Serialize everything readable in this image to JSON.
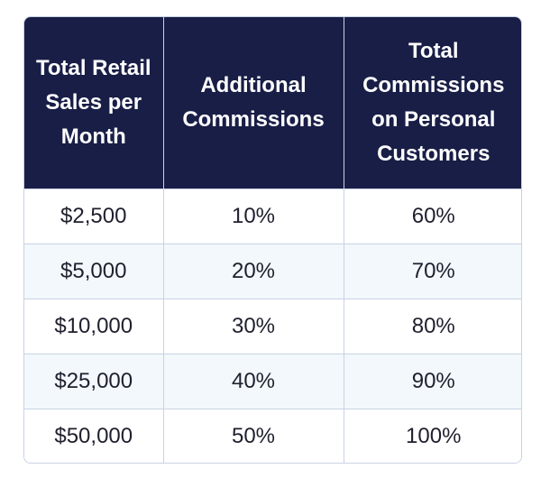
{
  "table": {
    "headers": [
      "Total Retail Sales per Month",
      "Additional Commissions",
      "Total Commissions on Personal Customers"
    ],
    "rows": [
      [
        "$2,500",
        "10%",
        "60%"
      ],
      [
        "$5,000",
        "20%",
        "70%"
      ],
      [
        "$10,000",
        "30%",
        "80%"
      ],
      [
        "$25,000",
        "40%",
        "90%"
      ],
      [
        "$50,000",
        "50%",
        "100%"
      ]
    ]
  },
  "colors": {
    "header_bg": "#191e47",
    "header_text": "#ffffff",
    "alt_row_bg": "#f3f8fc",
    "border": "#c9d2e4"
  }
}
